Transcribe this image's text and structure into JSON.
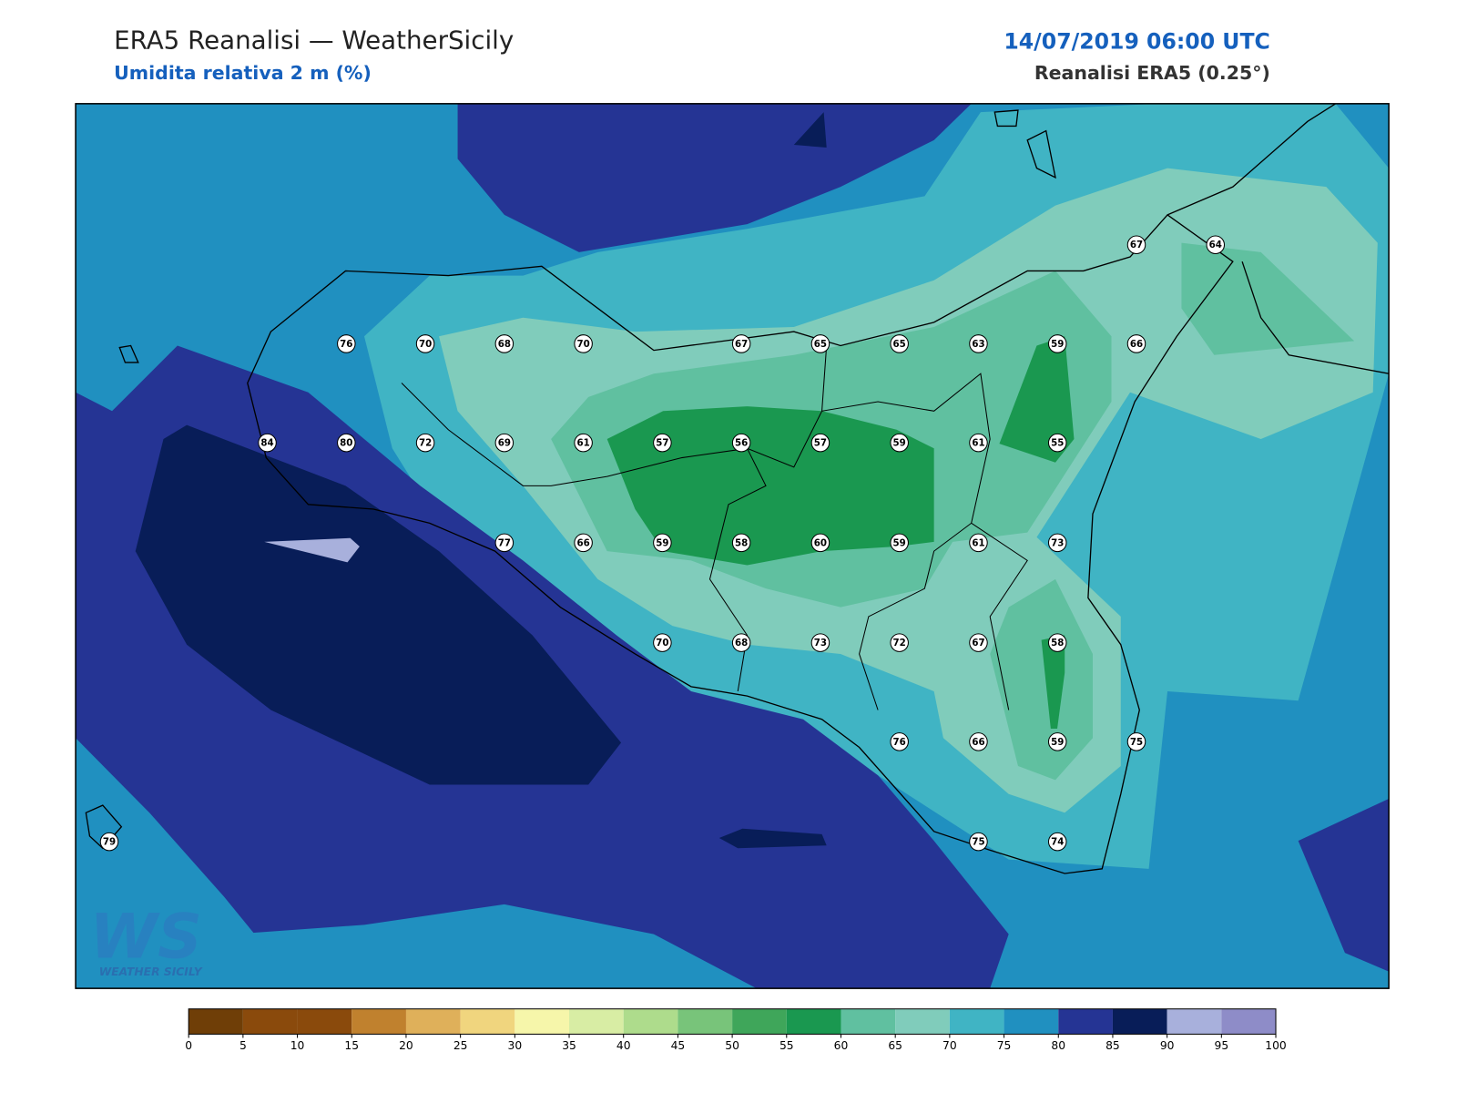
{
  "header": {
    "title": "ERA5 Reanalisi — WeatherSicily",
    "subtitle": "Umidita relativa 2 m (%)",
    "datetime": "14/07/2019 06:00 UTC",
    "source": "Reanalisi ERA5 (0.25°)"
  },
  "stations": [
    67,
    64,
    76,
    70,
    68,
    70,
    67,
    65,
    65,
    63,
    59,
    66,
    84,
    80,
    72,
    69,
    61,
    57,
    56,
    57,
    59,
    61,
    55,
    77,
    66,
    59,
    58,
    60,
    59,
    61,
    73,
    70,
    68,
    73,
    72,
    67,
    58,
    76,
    66,
    59,
    75,
    79,
    75,
    74
  ],
  "logo": {
    "mark": "WS",
    "name": "WEATHER SICILY"
  },
  "colorbar": {
    "ticks": [
      0,
      5,
      10,
      15,
      20,
      25,
      30,
      35,
      40,
      45,
      50,
      55,
      60,
      65,
      70,
      75,
      80,
      85,
      90,
      95,
      100
    ],
    "colors": [
      "#6f3e07",
      "#8a4a0c",
      "#8a4a0c",
      "#c0812e",
      "#dfb05a",
      "#f0d57e",
      "#f6f6aa",
      "#d8eda4",
      "#aedc8c",
      "#78c47a",
      "#3fa65a",
      "#1a9850",
      "#60c0a0",
      "#80ccbb",
      "#40b4c4",
      "#2090c0",
      "#253494",
      "#081d58",
      "#a8b0dc",
      "#8e8cc8"
    ]
  }
}
